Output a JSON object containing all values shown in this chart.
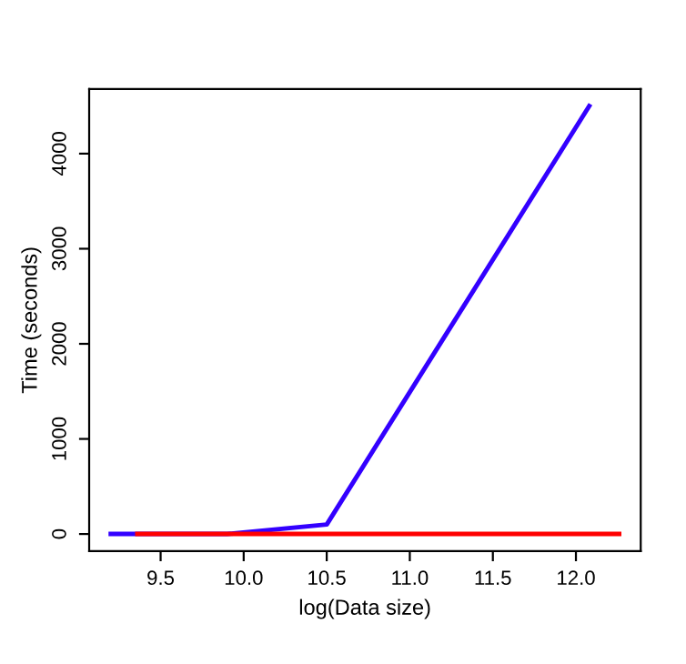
{
  "chart_data": {
    "type": "line",
    "xlabel": "log(Data size)",
    "ylabel": "Time (seconds)",
    "series": [
      {
        "color": "#3300ff",
        "x": [
          9.2,
          9.9,
          10.5,
          12.08
        ],
        "values": [
          0,
          0,
          100,
          4500
        ]
      },
      {
        "color": "#ff0000",
        "x": [
          9.36,
          12.26
        ],
        "values": [
          0,
          0
        ]
      }
    ],
    "xlim": [
      9.07,
      12.39
    ],
    "xticks": [
      {
        "value": 9.5,
        "label": "9.5"
      },
      {
        "value": 10,
        "label": "10.0"
      },
      {
        "value": 10.5,
        "label": "10.5"
      },
      {
        "value": 11,
        "label": "11.0"
      },
      {
        "value": 11.5,
        "label": "11.5"
      },
      {
        "value": 12,
        "label": "12.0"
      }
    ],
    "ylim": [
      -180,
      4680
    ],
    "yticks": [
      0,
      1000,
      2000,
      3000,
      4000
    ],
    "grid": false,
    "legend": false,
    "marker": "none",
    "line_style": "solid"
  }
}
